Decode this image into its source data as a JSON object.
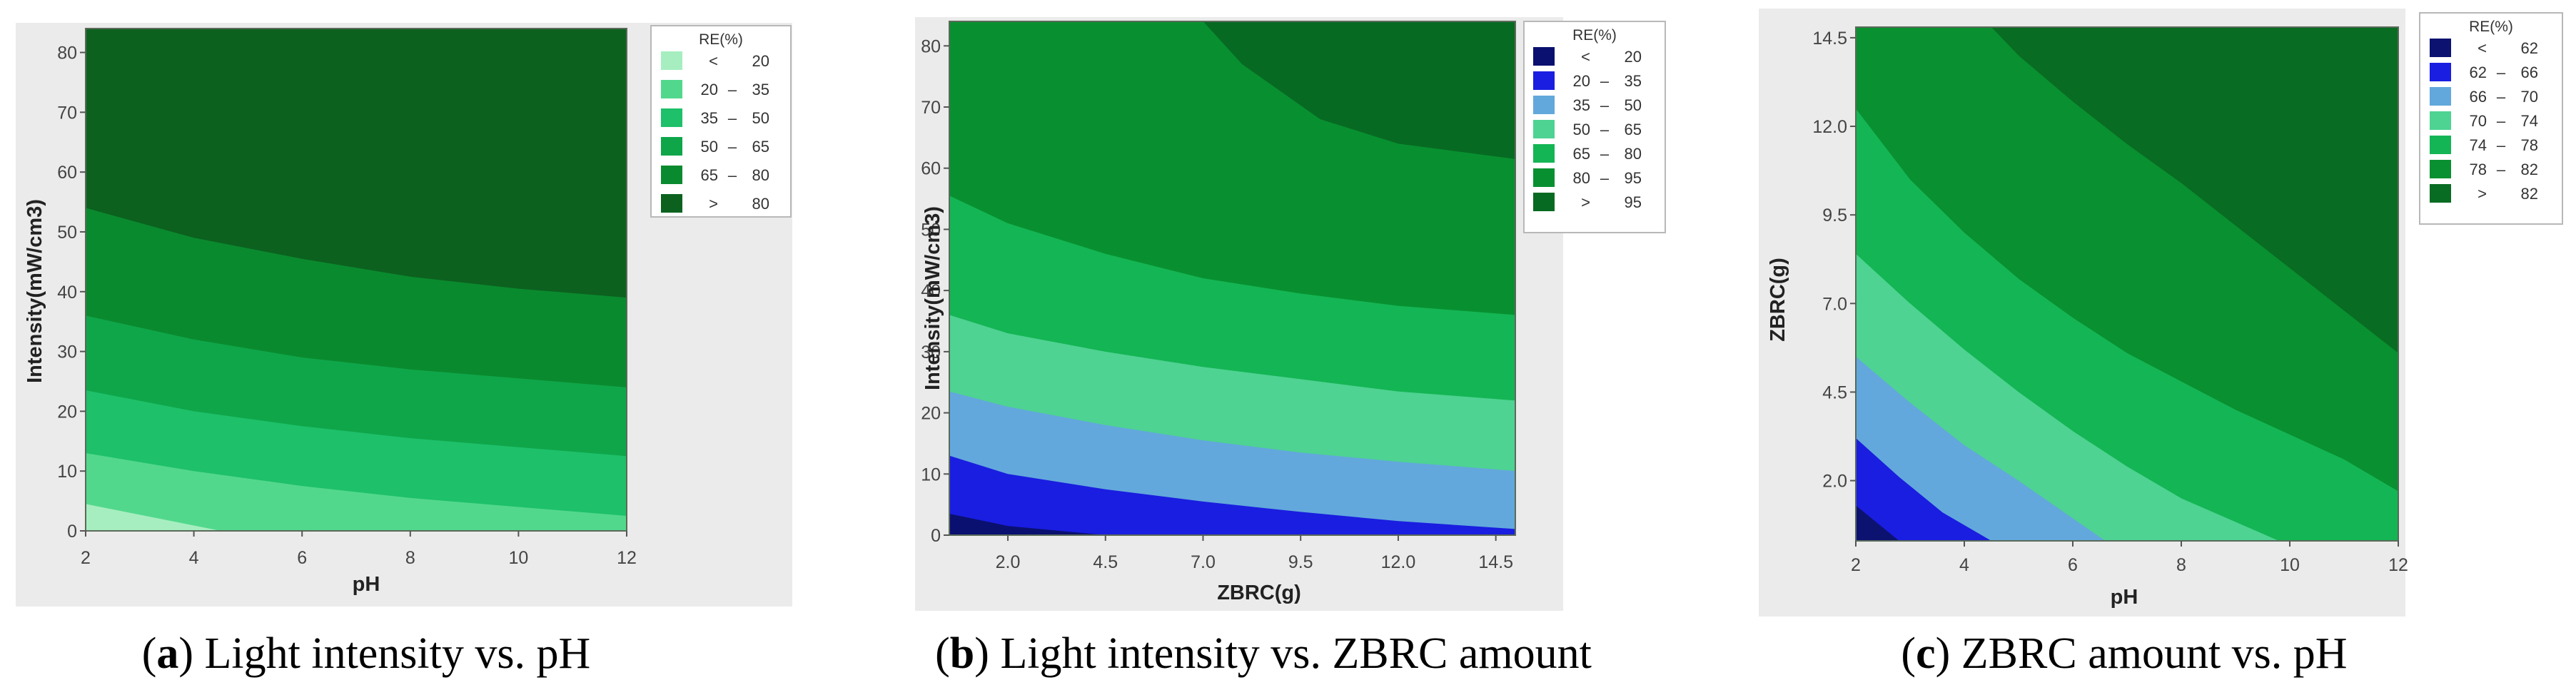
{
  "chart_data": [
    {
      "type": "contour",
      "panel_id": "a",
      "caption": "Light intensity vs. pH",
      "xlabel": "pH",
      "ylabel": "Intensity(mW/cm3)",
      "xlim": [
        2,
        12
      ],
      "ylim": [
        0,
        84
      ],
      "xticks": [
        "2",
        "4",
        "6",
        "8",
        "10",
        "12"
      ],
      "yticks": [
        "0",
        "10",
        "20",
        "30",
        "40",
        "50",
        "60",
        "70",
        "80"
      ],
      "legend": {
        "title": "RE(%)",
        "entries": [
          {
            "low": "<",
            "high": "20",
            "color": "#a6eec0"
          },
          {
            "low": "20",
            "high": "35",
            "color": "#52d88c"
          },
          {
            "low": "35",
            "high": "50",
            "color": "#1ec06a"
          },
          {
            "low": "50",
            "high": "65",
            "color": "#0fa64a"
          },
          {
            "low": "65",
            "high": "80",
            "color": "#0a8a2e"
          },
          {
            "low": ">",
            "high": "80",
            "color": "#0c611f"
          }
        ]
      },
      "contours": [
        {
          "level": 20,
          "x": [
            2,
            4.5,
            12
          ],
          "y": [
            4.5,
            0,
            0
          ]
        },
        {
          "level": 35,
          "x": [
            2,
            4,
            6,
            8,
            10,
            12
          ],
          "y": [
            13,
            10,
            7.5,
            5.5,
            4,
            2.5
          ]
        },
        {
          "level": 50,
          "x": [
            2,
            4,
            6,
            8,
            10,
            12
          ],
          "y": [
            23.5,
            20,
            17.5,
            15.5,
            14,
            12.5
          ]
        },
        {
          "level": 65,
          "x": [
            2,
            4,
            6,
            8,
            10,
            12
          ],
          "y": [
            36,
            32,
            29,
            27,
            25.5,
            24
          ]
        },
        {
          "level": 80,
          "x": [
            2,
            4,
            6,
            8,
            10,
            12
          ],
          "y": [
            54,
            49,
            45.5,
            42.5,
            40.5,
            39
          ]
        }
      ]
    },
    {
      "type": "contour",
      "panel_id": "b",
      "caption": "Light intensity vs. ZBRC amount",
      "xlabel": "ZBRC(g)",
      "ylabel": "Intensity(mW/cm3)",
      "xlim": [
        0.5,
        15
      ],
      "ylim": [
        0,
        84
      ],
      "xticks": [
        "2.0",
        "4.5",
        "7.0",
        "9.5",
        "12.0",
        "14.5"
      ],
      "yticks": [
        "0",
        "10",
        "20",
        "30",
        "40",
        "50",
        "60",
        "70",
        "80"
      ],
      "legend": {
        "title": "RE(%)",
        "entries": [
          {
            "low": "<",
            "high": "20",
            "color": "#0a1070"
          },
          {
            "low": "20",
            "high": "35",
            "color": "#1a1ee0"
          },
          {
            "low": "35",
            "high": "50",
            "color": "#62a8dc"
          },
          {
            "low": "50",
            "high": "65",
            "color": "#4ed392"
          },
          {
            "low": "65",
            "high": "80",
            "color": "#14b554"
          },
          {
            "low": "80",
            "high": "95",
            "color": "#089030"
          },
          {
            "low": ">",
            "high": "95",
            "color": "#076a22"
          }
        ]
      },
      "contours": [
        {
          "level": 20,
          "x": [
            0.5,
            2,
            4.5
          ],
          "y": [
            3.5,
            1.5,
            0
          ]
        },
        {
          "level": 35,
          "x": [
            0.5,
            2,
            4.5,
            7,
            9.5,
            12,
            15
          ],
          "y": [
            13,
            10,
            7.5,
            5.5,
            3.8,
            2.3,
            1
          ]
        },
        {
          "level": 50,
          "x": [
            0.5,
            2,
            4.5,
            7,
            9.5,
            12,
            15
          ],
          "y": [
            23.5,
            21,
            18,
            15.5,
            13.5,
            12,
            10.5
          ]
        },
        {
          "level": 65,
          "x": [
            0.5,
            2,
            4.5,
            7,
            9.5,
            12,
            15
          ],
          "y": [
            36,
            33,
            30,
            27.5,
            25.5,
            23.5,
            22
          ]
        },
        {
          "level": 80,
          "x": [
            0.5,
            2,
            4.5,
            7,
            9.5,
            12,
            15
          ],
          "y": [
            55.5,
            51,
            46,
            42,
            39.5,
            37.5,
            36
          ]
        },
        {
          "level": 95,
          "x": [
            7,
            8,
            10,
            12,
            15
          ],
          "y": [
            84,
            77,
            68,
            64,
            61.5
          ]
        }
      ]
    },
    {
      "type": "contour",
      "panel_id": "c",
      "caption": "ZBRC amount vs. pH",
      "xlabel": "pH",
      "ylabel": "ZBRC(g)",
      "xlim": [
        2,
        12
      ],
      "ylim": [
        0.3,
        14.8
      ],
      "xticks": [
        "2",
        "4",
        "6",
        "8",
        "10",
        "12"
      ],
      "yticks": [
        "2.0",
        "4.5",
        "7.0",
        "9.5",
        "12.0",
        "14.5"
      ],
      "legend": {
        "title": "RE(%)",
        "entries": [
          {
            "low": "<",
            "high": "62",
            "color": "#0c1270"
          },
          {
            "low": "62",
            "high": "66",
            "color": "#1a1ee0"
          },
          {
            "low": "66",
            "high": "70",
            "color": "#62a8dc"
          },
          {
            "low": "70",
            "high": "74",
            "color": "#4ed392"
          },
          {
            "low": "74",
            "high": "78",
            "color": "#14b554"
          },
          {
            "low": "78",
            "high": "82",
            "color": "#099030"
          },
          {
            "low": ">",
            "high": "82",
            "color": "#086c22"
          }
        ]
      },
      "contours": [
        {
          "level": 62,
          "x": [
            2,
            2.4,
            2.8
          ],
          "y": [
            1.3,
            0.8,
            0.3
          ]
        },
        {
          "level": 66,
          "x": [
            2,
            2.8,
            3.6,
            4.5
          ],
          "y": [
            3.2,
            2.1,
            1.1,
            0.3
          ]
        },
        {
          "level": 70,
          "x": [
            2,
            3,
            4,
            5,
            6.6
          ],
          "y": [
            5.5,
            4.2,
            3,
            2,
            0.3
          ]
        },
        {
          "level": 74,
          "x": [
            2,
            3,
            4,
            5,
            6,
            7,
            8,
            9.8
          ],
          "y": [
            8.4,
            7,
            5.7,
            4.5,
            3.4,
            2.4,
            1.5,
            0.3
          ]
        },
        {
          "level": 78,
          "x": [
            2,
            3,
            4,
            5,
            6,
            7,
            8,
            9,
            10,
            11,
            12
          ],
          "y": [
            12.5,
            10.5,
            9,
            7.7,
            6.6,
            5.6,
            4.8,
            4,
            3.3,
            2.6,
            1.7
          ]
        },
        {
          "level": 82,
          "x": [
            4.5,
            5,
            6,
            7,
            8,
            9,
            10,
            11,
            12
          ],
          "y": [
            14.8,
            14,
            12.7,
            11.5,
            10.4,
            9.2,
            8,
            6.8,
            5.6
          ]
        }
      ]
    }
  ]
}
